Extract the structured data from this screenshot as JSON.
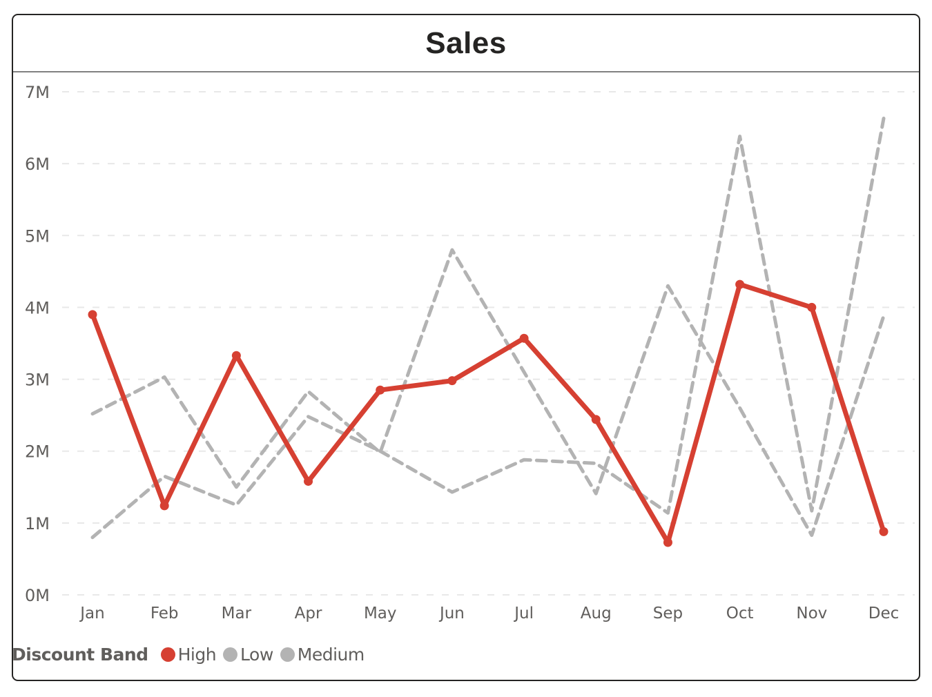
{
  "visual": {
    "title": "Sales"
  },
  "legend": {
    "title": "Discount Band",
    "items": [
      {
        "label": "High",
        "color": "#d64032"
      },
      {
        "label": "Low",
        "color": "#b3b3b3"
      },
      {
        "label": "Medium",
        "color": "#b3b3b3"
      }
    ]
  },
  "colors": {
    "high": "#d64032",
    "gray": "#b3b3b3",
    "grid": "#e8e8e8",
    "axis_text": "#605e5c",
    "border": "#252423"
  },
  "chart_data": {
    "type": "line",
    "title": "Sales",
    "xlabel": "",
    "ylabel": "",
    "categories": [
      "Jan",
      "Feb",
      "Mar",
      "Apr",
      "May",
      "Jun",
      "Jul",
      "Aug",
      "Sep",
      "Oct",
      "Nov",
      "Dec"
    ],
    "y_ticks": [
      "0M",
      "1M",
      "2M",
      "3M",
      "4M",
      "5M",
      "6M",
      "7M"
    ],
    "ylim": [
      0,
      7000000
    ],
    "grid": true,
    "legend_position": "bottom-left",
    "legend_title": "Discount Band",
    "series": [
      {
        "name": "High",
        "color": "#d64032",
        "style": "solid-with-markers",
        "values": [
          3900000,
          1240000,
          3330000,
          1580000,
          2850000,
          2980000,
          3570000,
          2440000,
          730000,
          4320000,
          4000000,
          880000
        ]
      },
      {
        "name": "Low",
        "color": "#b3b3b3",
        "style": "dashed",
        "values": [
          2520000,
          3030000,
          1500000,
          2830000,
          1980000,
          4800000,
          3100000,
          1410000,
          4300000,
          2600000,
          830000,
          3880000
        ]
      },
      {
        "name": "Medium",
        "color": "#b3b3b3",
        "style": "dashed",
        "values": [
          800000,
          1650000,
          1250000,
          2480000,
          2000000,
          1430000,
          1880000,
          1830000,
          1140000,
          6380000,
          1170000,
          6630000
        ]
      }
    ]
  }
}
